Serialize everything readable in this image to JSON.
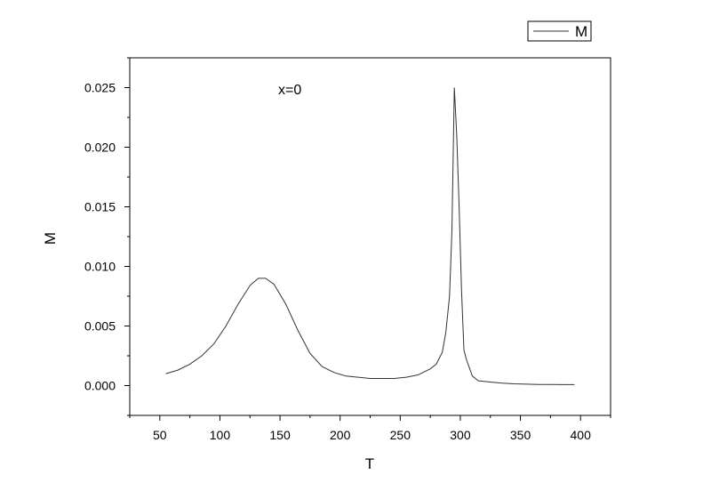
{
  "chart_data": {
    "type": "line",
    "title": "",
    "xlabel": "T",
    "ylabel": "M",
    "xlim": [
      25,
      425
    ],
    "ylim": [
      -0.0025,
      0.0275
    ],
    "xticks": [
      50,
      100,
      150,
      200,
      250,
      300,
      350,
      400
    ],
    "yticks": [
      0.0,
      0.005,
      0.01,
      0.015,
      0.02,
      0.025
    ],
    "xtick_labels": [
      "50",
      "100",
      "150",
      "200",
      "250",
      "300",
      "350",
      "400"
    ],
    "ytick_labels": [
      "0.000",
      "0.005",
      "0.010",
      "0.015",
      "0.020",
      "0.025"
    ],
    "annotation": "x=0",
    "legend": {
      "position": "top-right, outside plot",
      "entries": [
        "M"
      ]
    },
    "grid": false,
    "colors": {
      "line": "#333333",
      "axis": "#000000",
      "background": "#ffffff"
    },
    "series": [
      {
        "name": "M",
        "x": [
          55,
          65,
          75,
          85,
          95,
          105,
          115,
          125,
          132,
          138,
          145,
          155,
          165,
          175,
          185,
          195,
          205,
          215,
          225,
          235,
          245,
          255,
          265,
          275,
          280,
          285,
          288,
          291,
          293,
          295,
          297,
          299,
          301,
          303,
          305,
          310,
          315,
          325,
          335,
          345,
          355,
          365,
          375,
          385,
          395
        ],
        "y": [
          0.001,
          0.0013,
          0.0018,
          0.0025,
          0.0035,
          0.005,
          0.0068,
          0.0084,
          0.009,
          0.009,
          0.0085,
          0.0068,
          0.0046,
          0.0027,
          0.0016,
          0.0011,
          0.0008,
          0.0007,
          0.0006,
          0.0006,
          0.0006,
          0.0007,
          0.0009,
          0.0014,
          0.0018,
          0.0028,
          0.0045,
          0.0075,
          0.013,
          0.025,
          0.021,
          0.015,
          0.008,
          0.003,
          0.0022,
          0.0008,
          0.0004,
          0.0003,
          0.0002,
          0.00015,
          0.00012,
          0.0001,
          0.0001,
          8e-05,
          8e-05
        ]
      }
    ]
  }
}
